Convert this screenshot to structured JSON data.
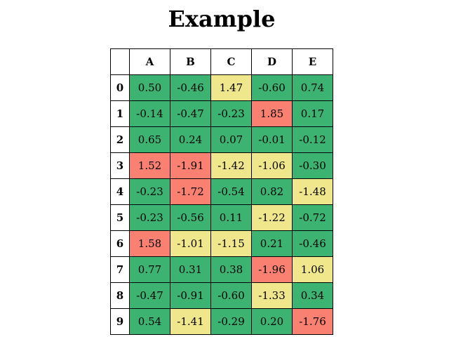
{
  "title": "Example",
  "colors": {
    "good": "#3cb371",
    "warn": "#f0e68c",
    "bad": "#fa8072"
  },
  "chart_data": {
    "type": "table",
    "title": "Example",
    "columns": [
      "A",
      "B",
      "C",
      "D",
      "E"
    ],
    "rows": [
      "0",
      "1",
      "2",
      "3",
      "4",
      "5",
      "6",
      "7",
      "8",
      "9"
    ],
    "values": [
      [
        "0.50",
        "-0.46",
        "1.47",
        "-0.60",
        "0.74"
      ],
      [
        "-0.14",
        "-0.47",
        "-0.23",
        "1.85",
        "0.17"
      ],
      [
        "0.65",
        "0.24",
        "0.07",
        "-0.01",
        "-0.12"
      ],
      [
        "1.52",
        "-1.91",
        "-1.42",
        "-1.06",
        "-0.30"
      ],
      [
        "-0.23",
        "-1.72",
        "-0.54",
        "0.82",
        "-1.48"
      ],
      [
        "-0.23",
        "-0.56",
        "0.11",
        "-1.22",
        "-0.72"
      ],
      [
        "1.58",
        "-1.01",
        "-1.15",
        "0.21",
        "-0.46"
      ],
      [
        "0.77",
        "0.31",
        "0.38",
        "-1.96",
        "1.06"
      ],
      [
        "-0.47",
        "-0.91",
        "-0.60",
        "-1.33",
        "0.34"
      ],
      [
        "0.54",
        "-1.41",
        "-0.29",
        "0.20",
        "-1.76"
      ]
    ],
    "levels": [
      [
        "good",
        "good",
        "warn",
        "good",
        "good"
      ],
      [
        "good",
        "good",
        "good",
        "bad",
        "good"
      ],
      [
        "good",
        "good",
        "good",
        "good",
        "good"
      ],
      [
        "bad",
        "bad",
        "warn",
        "warn",
        "good"
      ],
      [
        "good",
        "bad",
        "good",
        "good",
        "warn"
      ],
      [
        "good",
        "good",
        "good",
        "warn",
        "good"
      ],
      [
        "bad",
        "warn",
        "warn",
        "good",
        "good"
      ],
      [
        "good",
        "good",
        "good",
        "bad",
        "warn"
      ],
      [
        "good",
        "good",
        "good",
        "warn",
        "good"
      ],
      [
        "good",
        "warn",
        "good",
        "good",
        "bad"
      ]
    ]
  }
}
